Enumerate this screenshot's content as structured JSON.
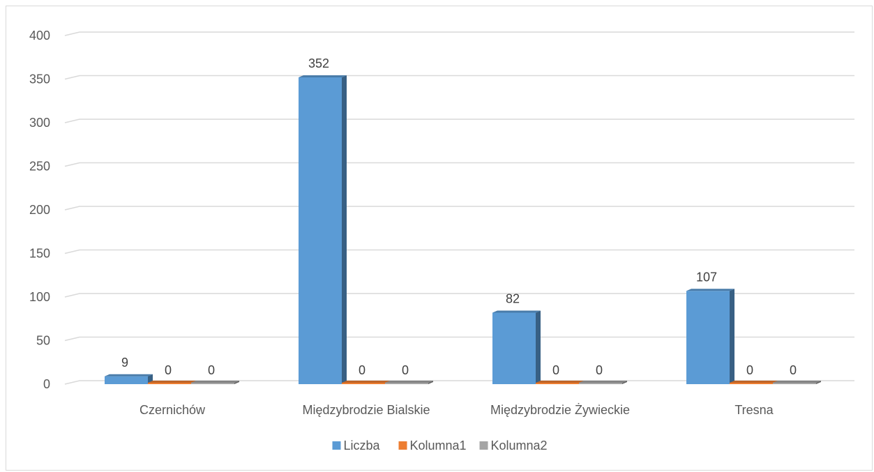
{
  "chart_data": {
    "type": "bar",
    "style": "3d-clustered-column",
    "title": "",
    "xlabel": "",
    "ylabel": "",
    "ylim": [
      0,
      400
    ],
    "yticks": [
      0,
      50,
      100,
      150,
      200,
      250,
      300,
      350,
      400
    ],
    "grid": true,
    "legend_position": "bottom",
    "categories": [
      "Czernichów",
      "Międzybrodzie Bialskie",
      "Międzybrodzie Żywieckie",
      "Tresna"
    ],
    "series": [
      {
        "name": "Liczba",
        "values": [
          9,
          352,
          82,
          107
        ],
        "color": "#5B9BD5"
      },
      {
        "name": "Kolumna1",
        "values": [
          0,
          0,
          0,
          0
        ],
        "color": "#ED7D31"
      },
      {
        "name": "Kolumna2",
        "values": [
          0,
          0,
          0,
          0
        ],
        "color": "#A5A5A5"
      }
    ],
    "data_labels": true
  }
}
